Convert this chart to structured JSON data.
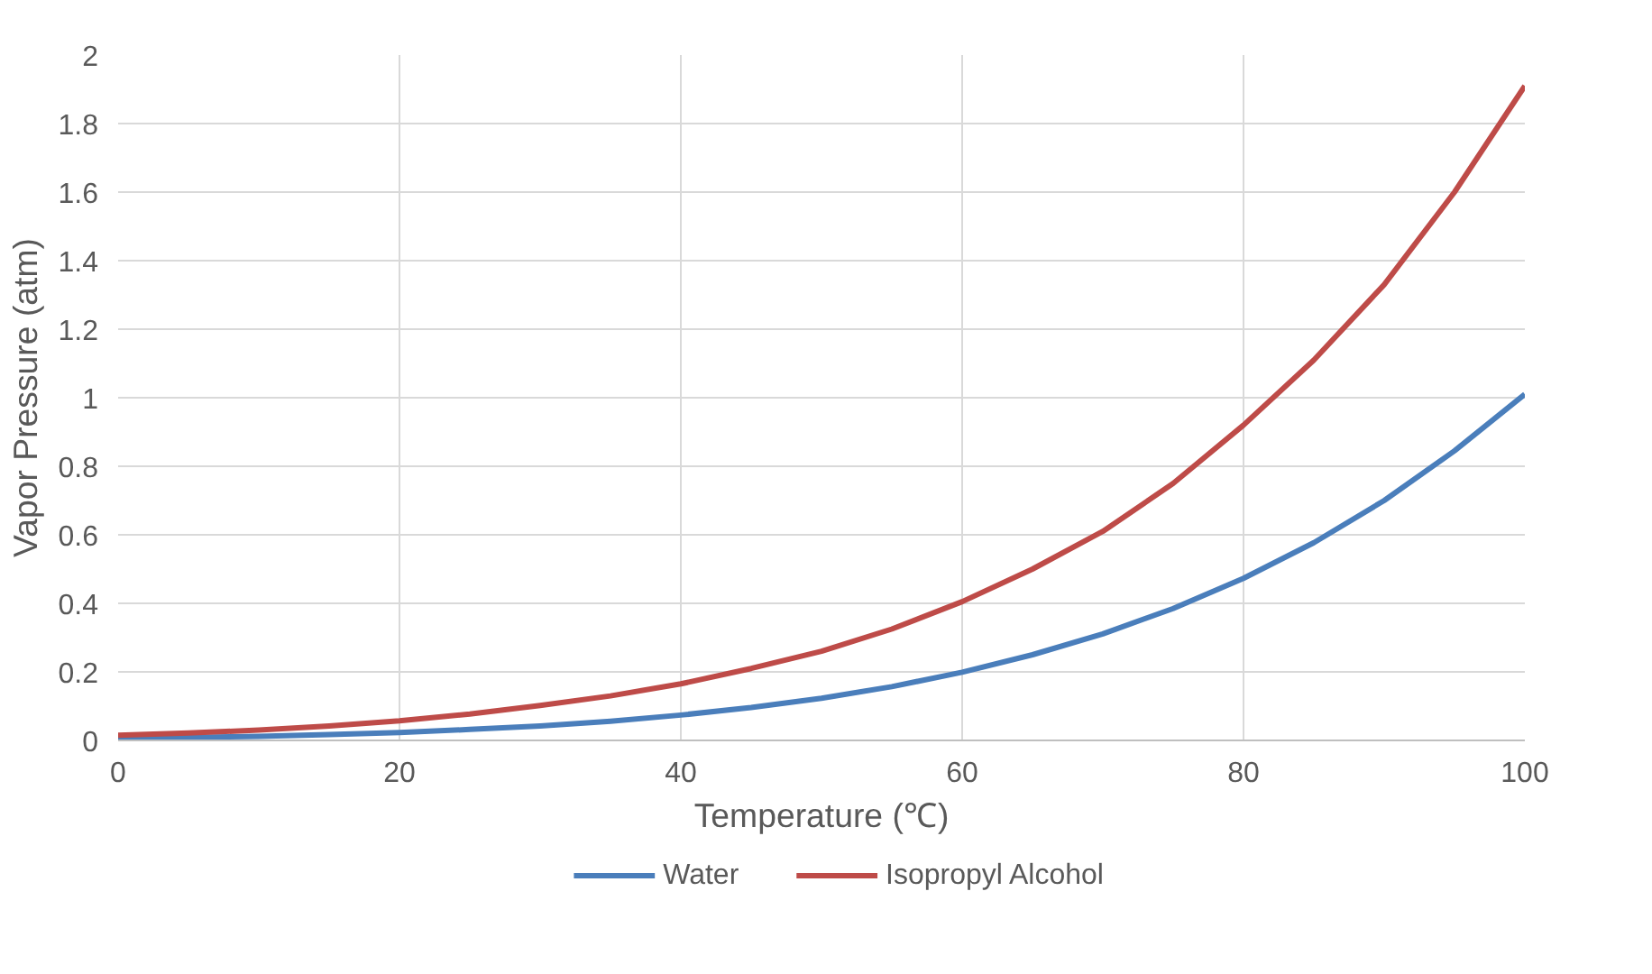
{
  "chart_data": {
    "type": "line",
    "xlabel": "Temperature (℃)",
    "ylabel": "Vapor Pressure (atm)",
    "x": [
      0,
      5,
      10,
      15,
      20,
      25,
      30,
      35,
      40,
      45,
      50,
      55,
      60,
      65,
      70,
      75,
      80,
      85,
      90,
      95,
      100
    ],
    "series": [
      {
        "name": "Water",
        "color": "#4a7ebb",
        "values": [
          0.006,
          0.009,
          0.012,
          0.017,
          0.023,
          0.032,
          0.042,
          0.056,
          0.074,
          0.096,
          0.123,
          0.157,
          0.199,
          0.25,
          0.311,
          0.385,
          0.473,
          0.577,
          0.7,
          0.845,
          1.01
        ]
      },
      {
        "name": "Isopropyl Alcohol",
        "color": "#be4b48",
        "values": [
          0.015,
          0.022,
          0.03,
          0.042,
          0.057,
          0.077,
          0.102,
          0.13,
          0.165,
          0.21,
          0.26,
          0.325,
          0.405,
          0.5,
          0.61,
          0.75,
          0.92,
          1.11,
          1.33,
          1.6,
          1.91
        ]
      }
    ],
    "xlim": [
      0,
      100
    ],
    "xticks": [
      0,
      20,
      40,
      60,
      80,
      100
    ],
    "ylim": [
      0,
      2
    ],
    "yticks": [
      0,
      0.2,
      0.4,
      0.6,
      0.8,
      1,
      1.2,
      1.4,
      1.6,
      1.8,
      2
    ],
    "grid": true,
    "legend": "bottom",
    "marker": "none",
    "line_style": "solid"
  }
}
